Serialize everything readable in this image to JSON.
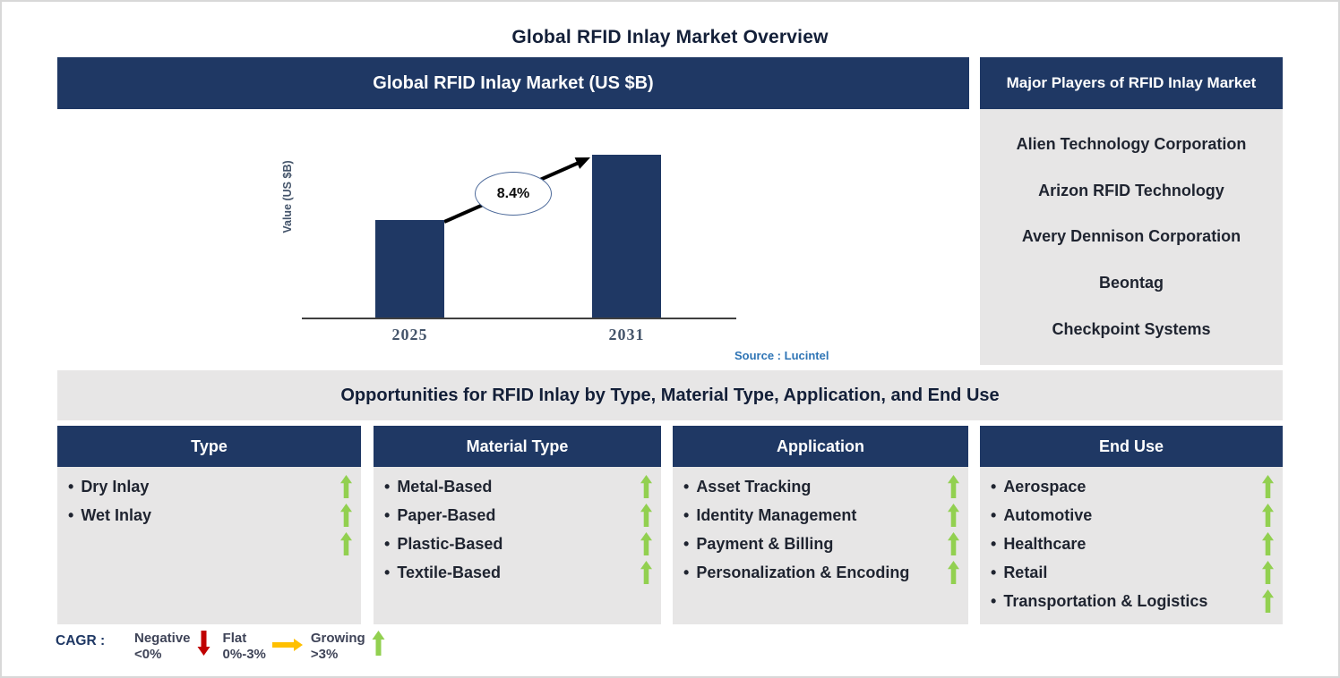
{
  "page": {
    "title": "Global RFID Inlay Market Overview"
  },
  "colors": {
    "navy_header": "#1F3864",
    "panel_gray": "#E7E6E6",
    "bar_navy": "#1F3864",
    "growing_green": "#92D050",
    "negative_red": "#C00000",
    "flat_orange": "#FFC000",
    "source_blue": "#2E74B5"
  },
  "chart_panel": {
    "header": "Global RFID Inlay Market (US $B)",
    "source": "Source : Lucintel"
  },
  "chart_data": {
    "type": "bar",
    "title": "Global RFID Inlay Market (US $B)",
    "categories": [
      "2025",
      "2031"
    ],
    "values": [
      0.6,
      1.0
    ],
    "values_note": "relative bar heights; chart shows no numeric value labels",
    "ylabel": "Value (US $B)",
    "xlabel": "",
    "grid": false,
    "legend": false,
    "annotations": [
      {
        "text": "8.4%",
        "shape": "ellipse-on-growth-arrow"
      }
    ]
  },
  "major_players": {
    "header": "Major Players of RFID Inlay Market",
    "items": [
      "Alien Technology Corporation",
      "Arizon RFID Technology",
      "Avery Dennison Corporation",
      "Beontag",
      "Checkpoint Systems"
    ]
  },
  "opportunities": {
    "title": "Opportunities for RFID Inlay by Type, Material Type, Application, and End Use",
    "columns": [
      {
        "header": "Type",
        "items": [
          {
            "label": "Dry Inlay",
            "trend": "growing"
          },
          {
            "label": "Wet Inlay",
            "trend": "growing"
          },
          {
            "label": "",
            "trend": "growing"
          }
        ]
      },
      {
        "header": "Material Type",
        "items": [
          {
            "label": "Metal-Based",
            "trend": "growing"
          },
          {
            "label": "Paper-Based",
            "trend": "growing"
          },
          {
            "label": "Plastic-Based",
            "trend": "growing"
          },
          {
            "label": "Textile-Based",
            "trend": "growing"
          }
        ]
      },
      {
        "header": "Application",
        "items": [
          {
            "label": "Asset Tracking",
            "trend": "growing"
          },
          {
            "label": "Identity Management",
            "trend": "growing"
          },
          {
            "label": "Payment & Billing",
            "trend": "growing"
          },
          {
            "label": "Personalization & Encoding",
            "trend": "growing"
          }
        ]
      },
      {
        "header": "End Use",
        "items": [
          {
            "label": "Aerospace",
            "trend": "growing"
          },
          {
            "label": "Automotive",
            "trend": "growing"
          },
          {
            "label": "Healthcare",
            "trend": "growing"
          },
          {
            "label": "Retail",
            "trend": "growing"
          },
          {
            "label": "Transportation & Logistics",
            "trend": "growing"
          }
        ]
      }
    ]
  },
  "cagr_legend": {
    "prefix": "CAGR :",
    "entries": [
      {
        "label": "Negative",
        "range": "<0%",
        "icon": "down-arrow",
        "color": "#C00000"
      },
      {
        "label": "Flat",
        "range": "0%-3%",
        "icon": "right-arrow",
        "color": "#FFC000"
      },
      {
        "label": "Growing",
        "range": ">3%",
        "icon": "up-arrow",
        "color": "#92D050"
      }
    ]
  }
}
